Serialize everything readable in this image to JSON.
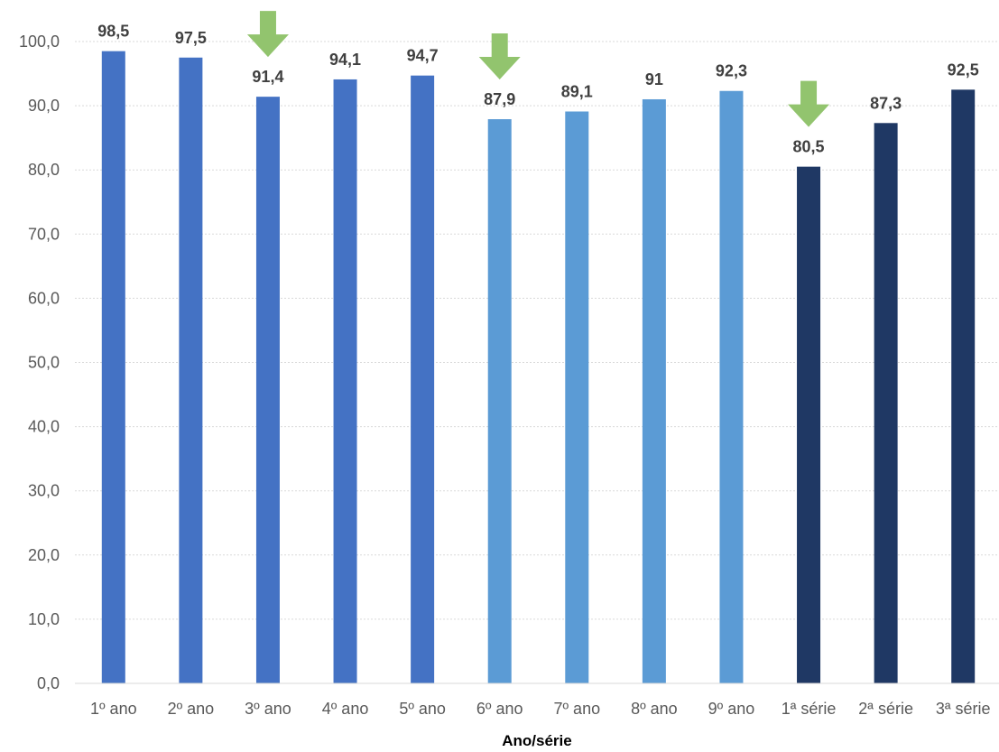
{
  "chart_data": {
    "type": "bar",
    "title": "",
    "xlabel": "Ano/série",
    "ylabel": "",
    "ylim": [
      0,
      100
    ],
    "yticks": [
      "0,0",
      "10,0",
      "20,0",
      "30,0",
      "40,0",
      "50,0",
      "60,0",
      "70,0",
      "80,0",
      "90,0",
      "100,0"
    ],
    "grid": true,
    "legend": "none",
    "categories": [
      "1º ano",
      "2º ano",
      "3º ano",
      "4º ano",
      "5º ano",
      "6º ano",
      "7º ano",
      "8º ano",
      "9º ano",
      "1ª série",
      "2ª série",
      "3ª série"
    ],
    "values": [
      98.5,
      97.5,
      91.4,
      94.1,
      94.7,
      87.9,
      89.1,
      91,
      92.3,
      80.5,
      87.3,
      92.5
    ],
    "data_labels": [
      "98,5",
      "97,5",
      "91,4",
      "94,1",
      "94,7",
      "87,9",
      "89,1",
      "91",
      "92,3",
      "80,5",
      "87,3",
      "92,5"
    ],
    "colors": [
      "#4472C4",
      "#4472C4",
      "#4472C4",
      "#4472C4",
      "#4472C4",
      "#5B9BD5",
      "#5B9BD5",
      "#5B9BD5",
      "#5B9BD5",
      "#1F3864",
      "#1F3864",
      "#1F3864"
    ],
    "annotations": [
      {
        "type": "down-arrow-icon",
        "category": "3º ano",
        "color": "#92C46E"
      },
      {
        "type": "down-arrow-icon",
        "category": "6º ano",
        "color": "#92C46E"
      },
      {
        "type": "down-arrow-icon",
        "category": "1ª série",
        "color": "#92C46E"
      }
    ]
  }
}
